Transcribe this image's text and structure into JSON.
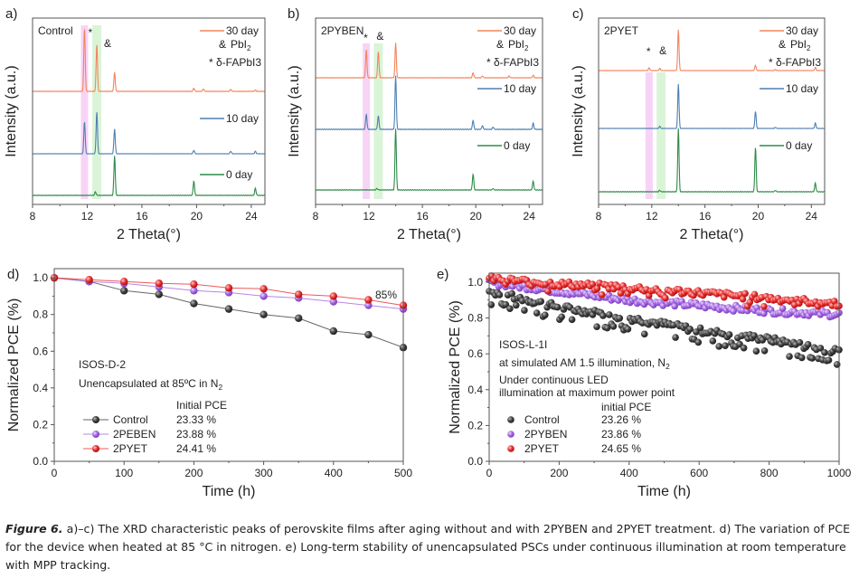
{
  "figure": {
    "caption_label": "Figure 6.",
    "caption_text": " a)–c) The XRD characteristic peaks of perovskite films after aging without and with 2PYBEN and 2PYET treatment. d) The variation of PCE for the device when heated at 85 °C in nitrogen. e) Long-term stability of unencapsulated PSCs under continuous illumination at room temperature with MPP tracking."
  },
  "colors": {
    "day30": "#f2845c",
    "day10": "#4f7fb0",
    "day0": "#2e8b48",
    "pink_band": "#f6cdf4",
    "green_band": "#d4f2d0",
    "control": "#404040",
    "pyben": "#a566e0",
    "pyet": "#e83030",
    "axis": "#555555"
  },
  "chart_data": [
    {
      "panel": "a)",
      "type": "line",
      "title": "Control",
      "xlabel": "2 Theta(°)",
      "ylabel": "Intensity (a.u.)",
      "xlim": [
        8,
        25
      ],
      "xticks": [
        8,
        12,
        16,
        20,
        24
      ],
      "bands": [
        {
          "center": 11.8,
          "label": "*"
        },
        {
          "center": 12.7,
          "label": "&"
        }
      ],
      "legend": [
        "30 day",
        "10 day",
        "0 day"
      ],
      "annotations": [
        "& PbI₂",
        "* δ-FAPbI3"
      ],
      "series": [
        {
          "name": "30 day",
          "peaks": [
            [
              11.8,
              1.0
            ],
            [
              12.7,
              0.75
            ],
            [
              14.0,
              0.3
            ],
            [
              19.8,
              0.05
            ],
            [
              20.5,
              0.04
            ],
            [
              22.5,
              0.03
            ],
            [
              24.3,
              0.02
            ]
          ]
        },
        {
          "name": "10 day",
          "peaks": [
            [
              11.8,
              0.65
            ],
            [
              12.7,
              0.85
            ],
            [
              14.0,
              0.5
            ],
            [
              19.8,
              0.07
            ],
            [
              22.5,
              0.05
            ],
            [
              24.3,
              0.05
            ]
          ]
        },
        {
          "name": "0 day",
          "peaks": [
            [
              12.6,
              0.05
            ],
            [
              14.0,
              0.55
            ],
            [
              19.8,
              0.2
            ],
            [
              24.3,
              0.1
            ]
          ]
        }
      ]
    },
    {
      "panel": "b)",
      "type": "line",
      "title": "2PYBEN",
      "xlabel": "2 Theta(°)",
      "ylabel": "Intensity (a.u.)",
      "xlim": [
        8,
        25
      ],
      "xticks": [
        8,
        12,
        16,
        20,
        24
      ],
      "bands": [
        {
          "center": 11.8,
          "label": "*"
        },
        {
          "center": 12.7,
          "label": "&"
        }
      ],
      "legend": [
        "30 day",
        "10 day",
        "0 day"
      ],
      "annotations": [
        "& PbI₂",
        "* δ-FAPbI3"
      ],
      "series": [
        {
          "name": "30 day",
          "peaks": [
            [
              11.8,
              0.45
            ],
            [
              12.7,
              0.42
            ],
            [
              14.0,
              0.55
            ],
            [
              19.8,
              0.08
            ],
            [
              20.5,
              0.03
            ],
            [
              22.5,
              0.03
            ],
            [
              24.3,
              0.04
            ]
          ]
        },
        {
          "name": "10 day",
          "peaks": [
            [
              11.8,
              0.2
            ],
            [
              12.7,
              0.18
            ],
            [
              14.0,
              0.7
            ],
            [
              19.8,
              0.12
            ],
            [
              20.5,
              0.05
            ],
            [
              21.3,
              0.03
            ],
            [
              24.3,
              0.08
            ]
          ]
        },
        {
          "name": "0 day",
          "peaks": [
            [
              12.6,
              0.02
            ],
            [
              14.0,
              0.85
            ],
            [
              19.8,
              0.22
            ],
            [
              21.3,
              0.02
            ],
            [
              24.3,
              0.12
            ]
          ]
        }
      ]
    },
    {
      "panel": "c)",
      "type": "line",
      "title": "2PYET",
      "xlabel": "2 Theta(°)",
      "ylabel": "Intensity (a.u.)",
      "xlim": [
        8,
        25
      ],
      "xticks": [
        8,
        12,
        16,
        20,
        24
      ],
      "bands": [
        {
          "center": 11.8,
          "label": "*"
        },
        {
          "center": 12.7,
          "label": "&"
        }
      ],
      "legend": [
        "30 day",
        "10 day",
        "0 day"
      ],
      "annotations": [
        "& PbI₂",
        "* δ-FAPbI3"
      ],
      "series": [
        {
          "name": "30 day",
          "peaks": [
            [
              11.8,
              0.05
            ],
            [
              12.6,
              0.04
            ],
            [
              14.0,
              0.75
            ],
            [
              19.8,
              0.1
            ],
            [
              21.3,
              0.02
            ],
            [
              24.3,
              0.06
            ]
          ]
        },
        {
          "name": "10 day",
          "peaks": [
            [
              12.6,
              0.04
            ],
            [
              14.0,
              0.82
            ],
            [
              19.8,
              0.32
            ],
            [
              21.3,
              0.02
            ],
            [
              24.3,
              0.1
            ]
          ]
        },
        {
          "name": "0 day",
          "peaks": [
            [
              12.6,
              0.02
            ],
            [
              14.0,
              0.88
            ],
            [
              19.8,
              0.62
            ],
            [
              21.3,
              0.02
            ],
            [
              24.3,
              0.12
            ]
          ]
        }
      ]
    },
    {
      "panel": "d)",
      "type": "line",
      "xlabel": "Time (h)",
      "ylabel": "Normalized PCE (%)",
      "xlim": [
        0,
        500
      ],
      "ylim": [
        0,
        1.05
      ],
      "xticks": [
        0,
        100,
        200,
        300,
        400,
        500
      ],
      "yticks": [
        0.0,
        0.2,
        0.4,
        0.6,
        0.8,
        1.0
      ],
      "annotations": [
        "ISOS-D-2",
        "Unencapsulated at 85ºC in N₂",
        "85%"
      ],
      "legend_header": "Initial PCE",
      "x": [
        0,
        50,
        100,
        150,
        200,
        250,
        300,
        350,
        400,
        450,
        500
      ],
      "series": [
        {
          "name": "Control",
          "initial_pce": "23.33 %",
          "values": [
            1.0,
            0.98,
            0.93,
            0.91,
            0.86,
            0.83,
            0.8,
            0.78,
            0.71,
            0.69,
            0.62
          ]
        },
        {
          "name": "2PEBEN",
          "initial_pce": "23.88 %",
          "values": [
            1.0,
            0.98,
            0.97,
            0.95,
            0.93,
            0.92,
            0.9,
            0.89,
            0.87,
            0.85,
            0.83
          ]
        },
        {
          "name": "2PYET",
          "initial_pce": "24.41 %",
          "values": [
            1.0,
            0.99,
            0.98,
            0.97,
            0.965,
            0.945,
            0.94,
            0.91,
            0.9,
            0.88,
            0.85
          ]
        }
      ]
    },
    {
      "panel": "e)",
      "type": "scatter",
      "xlabel": "Time (h)",
      "ylabel": "Normalized PCE (%)",
      "xlim": [
        0,
        1000
      ],
      "ylim": [
        0,
        1.05
      ],
      "xticks": [
        0,
        200,
        400,
        600,
        800,
        1000
      ],
      "yticks": [
        0.0,
        0.2,
        0.4,
        0.6,
        0.8,
        1.0
      ],
      "annotations": [
        "ISOS-L-1I",
        "at simulated AM 1.5 illumination, N₂",
        "Under continuous LED",
        "illumination at maximum power point"
      ],
      "legend_header": "initial PCE",
      "series": [
        {
          "name": "Control",
          "initial_pce": "23.26 %",
          "trend": [
            [
              0,
              0.95
            ],
            [
              200,
              0.86
            ],
            [
              400,
              0.8
            ],
            [
              600,
              0.73
            ],
            [
              800,
              0.68
            ],
            [
              1000,
              0.61
            ]
          ]
        },
        {
          "name": "2PYBEN",
          "initial_pce": "23.86 %",
          "trend": [
            [
              0,
              1.0
            ],
            [
              200,
              0.95
            ],
            [
              400,
              0.9
            ],
            [
              600,
              0.87
            ],
            [
              800,
              0.84
            ],
            [
              1000,
              0.82
            ]
          ]
        },
        {
          "name": "2PYET",
          "initial_pce": "24.65 %",
          "trend": [
            [
              0,
              1.02
            ],
            [
              200,
              0.99
            ],
            [
              400,
              0.97
            ],
            [
              600,
              0.94
            ],
            [
              800,
              0.91
            ],
            [
              1000,
              0.88
            ]
          ]
        }
      ]
    }
  ]
}
